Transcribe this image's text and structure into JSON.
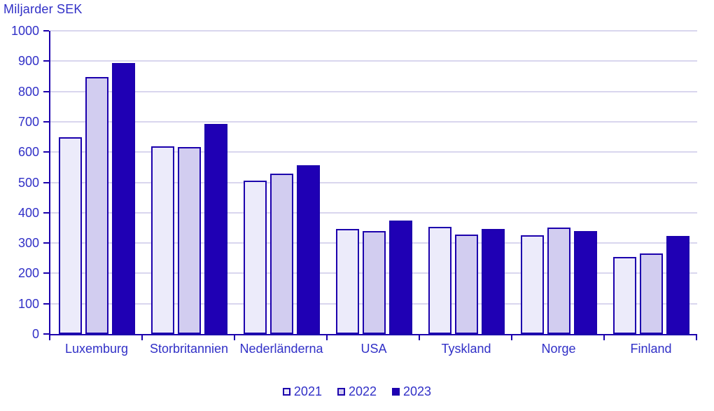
{
  "chart": {
    "title": "Miljarder SEK"
  },
  "colors": {
    "axis": "#1c01ad",
    "bar_border": "#1c01ad",
    "grid": "#d9d6ee",
    "text": "#3130c7"
  },
  "chart_data": {
    "type": "bar",
    "title": "Miljarder SEK",
    "categories": [
      "Luxemburg",
      "Storbritannien",
      "Nederländerna",
      "USA",
      "Tyskland",
      "Norge",
      "Finland"
    ],
    "series": [
      {
        "name": "2021",
        "color": "#ecebfa",
        "values": [
          650,
          620,
          506,
          347,
          353,
          326,
          253
        ]
      },
      {
        "name": "2022",
        "color": "#d2cdf0",
        "values": [
          848,
          617,
          529,
          340,
          327,
          352,
          265
        ]
      },
      {
        "name": "2023",
        "color": "#1f00b4",
        "values": [
          893,
          692,
          557,
          375,
          346,
          339,
          324
        ]
      }
    ],
    "ylim": [
      0,
      1000
    ],
    "yticks": [
      0,
      100,
      200,
      300,
      400,
      500,
      600,
      700,
      800,
      900,
      1000
    ],
    "grid": true,
    "legend_position": "bottom"
  }
}
